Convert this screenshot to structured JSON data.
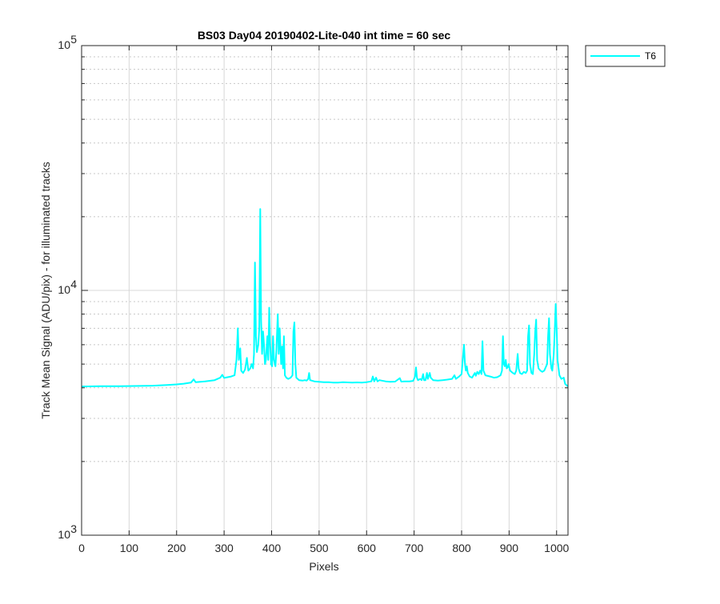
{
  "chart_data": {
    "type": "line",
    "title": "BS03 Day04 20190402-Lite-040 int time = 60 sec",
    "xlabel": "Pixels",
    "ylabel": "Track Mean Signal (ADU/pix) - for illuminated tracks",
    "xlim": [
      0,
      1024
    ],
    "ylim": [
      1000,
      100000
    ],
    "yscale": "log",
    "xticks": [
      "0",
      "100",
      "200",
      "300",
      "400",
      "500",
      "600",
      "700",
      "800",
      "900",
      "1000"
    ],
    "yticks": [
      {
        "base": "10",
        "exp": "3",
        "value": 1000
      },
      {
        "base": "10",
        "exp": "4",
        "value": 10000
      },
      {
        "base": "10",
        "exp": "5",
        "value": 100000
      }
    ],
    "grid": true,
    "legend_location": "outside-top-right",
    "series": [
      {
        "name": "T6",
        "color": "#00ffff",
        "points": [
          [
            0,
            4050
          ],
          [
            40,
            4060
          ],
          [
            80,
            4060
          ],
          [
            110,
            4070
          ],
          [
            150,
            4080
          ],
          [
            180,
            4110
          ],
          [
            200,
            4130
          ],
          [
            215,
            4160
          ],
          [
            230,
            4200
          ],
          [
            236,
            4330
          ],
          [
            240,
            4220
          ],
          [
            260,
            4250
          ],
          [
            280,
            4300
          ],
          [
            292,
            4400
          ],
          [
            296,
            4520
          ],
          [
            300,
            4390
          ],
          [
            315,
            4450
          ],
          [
            322,
            4500
          ],
          [
            326,
            5200
          ],
          [
            329,
            7000
          ],
          [
            331,
            5200
          ],
          [
            334,
            5800
          ],
          [
            336,
            4700
          ],
          [
            340,
            4600
          ],
          [
            344,
            4750
          ],
          [
            348,
            5300
          ],
          [
            351,
            4700
          ],
          [
            355,
            4800
          ],
          [
            358,
            5000
          ],
          [
            361,
            4800
          ],
          [
            363,
            5500
          ],
          [
            365,
            13000
          ],
          [
            367,
            6500
          ],
          [
            369,
            5600
          ],
          [
            372,
            6000
          ],
          [
            374,
            7000
          ],
          [
            376,
            21500
          ],
          [
            378,
            7500
          ],
          [
            380,
            5500
          ],
          [
            382,
            6800
          ],
          [
            384,
            6000
          ],
          [
            386,
            5000
          ],
          [
            388,
            5200
          ],
          [
            391,
            6500
          ],
          [
            393,
            5200
          ],
          [
            395,
            8500
          ],
          [
            397,
            6000
          ],
          [
            399,
            5000
          ],
          [
            401,
            4900
          ],
          [
            403,
            6500
          ],
          [
            405,
            5200
          ],
          [
            408,
            4900
          ],
          [
            410,
            5600
          ],
          [
            413,
            8000
          ],
          [
            415,
            5500
          ],
          [
            417,
            7000
          ],
          [
            420,
            5000
          ],
          [
            422,
            5900
          ],
          [
            424,
            4800
          ],
          [
            426,
            6500
          ],
          [
            428,
            4500
          ],
          [
            431,
            4400
          ],
          [
            435,
            4350
          ],
          [
            440,
            4400
          ],
          [
            444,
            4500
          ],
          [
            446,
            6800
          ],
          [
            448,
            7400
          ],
          [
            450,
            5000
          ],
          [
            452,
            4400
          ],
          [
            458,
            4300
          ],
          [
            465,
            4280
          ],
          [
            470,
            4300
          ],
          [
            474,
            4280
          ],
          [
            477,
            4350
          ],
          [
            479,
            4600
          ],
          [
            481,
            4300
          ],
          [
            490,
            4250
          ],
          [
            500,
            4230
          ],
          [
            510,
            4220
          ],
          [
            520,
            4220
          ],
          [
            530,
            4200
          ],
          [
            540,
            4200
          ],
          [
            550,
            4220
          ],
          [
            560,
            4210
          ],
          [
            570,
            4200
          ],
          [
            580,
            4210
          ],
          [
            590,
            4200
          ],
          [
            600,
            4220
          ],
          [
            610,
            4250
          ],
          [
            613,
            4450
          ],
          [
            616,
            4250
          ],
          [
            620,
            4400
          ],
          [
            623,
            4250
          ],
          [
            627,
            4300
          ],
          [
            632,
            4280
          ],
          [
            640,
            4250
          ],
          [
            650,
            4230
          ],
          [
            660,
            4240
          ],
          [
            670,
            4380
          ],
          [
            673,
            4240
          ],
          [
            680,
            4250
          ],
          [
            690,
            4250
          ],
          [
            698,
            4270
          ],
          [
            702,
            4450
          ],
          [
            704,
            4850
          ],
          [
            706,
            4400
          ],
          [
            708,
            4300
          ],
          [
            713,
            4350
          ],
          [
            716,
            4300
          ],
          [
            719,
            4550
          ],
          [
            721,
            4300
          ],
          [
            724,
            4300
          ],
          [
            727,
            4600
          ],
          [
            729,
            4350
          ],
          [
            733,
            4600
          ],
          [
            735,
            4400
          ],
          [
            740,
            4300
          ],
          [
            750,
            4280
          ],
          [
            760,
            4300
          ],
          [
            770,
            4320
          ],
          [
            780,
            4350
          ],
          [
            785,
            4500
          ],
          [
            788,
            4350
          ],
          [
            795,
            4450
          ],
          [
            800,
            4550
          ],
          [
            803,
            5400
          ],
          [
            805,
            6000
          ],
          [
            807,
            5000
          ],
          [
            809,
            4700
          ],
          [
            811,
            4900
          ],
          [
            813,
            4600
          ],
          [
            817,
            4450
          ],
          [
            822,
            4400
          ],
          [
            825,
            4500
          ],
          [
            828,
            4600
          ],
          [
            830,
            4480
          ],
          [
            833,
            4650
          ],
          [
            836,
            4550
          ],
          [
            839,
            4700
          ],
          [
            842,
            4550
          ],
          [
            844,
            6200
          ],
          [
            846,
            4700
          ],
          [
            850,
            4500
          ],
          [
            860,
            4450
          ],
          [
            868,
            4400
          ],
          [
            875,
            4420
          ],
          [
            882,
            4500
          ],
          [
            885,
            4700
          ],
          [
            887,
            6500
          ],
          [
            889,
            5000
          ],
          [
            891,
            4900
          ],
          [
            893,
            5200
          ],
          [
            895,
            4800
          ],
          [
            897,
            4850
          ],
          [
            899,
            5000
          ],
          [
            902,
            4700
          ],
          [
            905,
            4650
          ],
          [
            908,
            4600
          ],
          [
            912,
            4550
          ],
          [
            915,
            4700
          ],
          [
            918,
            5500
          ],
          [
            920,
            4800
          ],
          [
            923,
            4600
          ],
          [
            927,
            4550
          ],
          [
            931,
            4650
          ],
          [
            935,
            4600
          ],
          [
            938,
            4700
          ],
          [
            940,
            6500
          ],
          [
            942,
            7200
          ],
          [
            944,
            5000
          ],
          [
            947,
            4600
          ],
          [
            950,
            4550
          ],
          [
            953,
            5500
          ],
          [
            955,
            6800
          ],
          [
            957,
            7600
          ],
          [
            959,
            5200
          ],
          [
            962,
            4800
          ],
          [
            966,
            4700
          ],
          [
            970,
            4650
          ],
          [
            974,
            4700
          ],
          [
            978,
            4900
          ],
          [
            980,
            5000
          ],
          [
            982,
            6500
          ],
          [
            984,
            7700
          ],
          [
            986,
            5500
          ],
          [
            989,
            4800
          ],
          [
            991,
            4700
          ],
          [
            994,
            5500
          ],
          [
            996,
            6800
          ],
          [
            998,
            8800
          ],
          [
            1000,
            7000
          ],
          [
            1002,
            5200
          ],
          [
            1006,
            4500
          ],
          [
            1010,
            4350
          ],
          [
            1015,
            4400
          ],
          [
            1018,
            4150
          ],
          [
            1024,
            4050
          ]
        ]
      }
    ]
  }
}
